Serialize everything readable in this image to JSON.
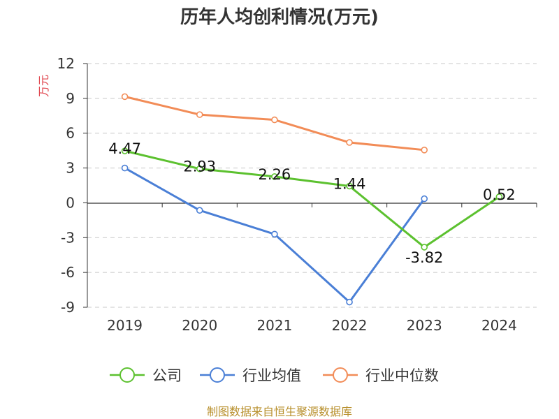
{
  "chart_data": {
    "type": "line",
    "title": "历年人均创利情况(万元)",
    "ylabel": "万元",
    "xlabel": "",
    "categories": [
      "2019",
      "2020",
      "2021",
      "2022",
      "2023",
      "2024"
    ],
    "ylim": [
      -9,
      12
    ],
    "yticks": [
      12,
      9,
      6,
      3,
      0,
      -3,
      -6,
      -9
    ],
    "grid": true,
    "legend_position": "bottom",
    "series": [
      {
        "name": "公司",
        "color": "#5cc12f",
        "values": [
          4.47,
          2.93,
          2.26,
          1.44,
          -3.82,
          0.52
        ],
        "labels": [
          "4.47",
          "2.93",
          "2.26",
          "1.44",
          "-3.82",
          "0.52"
        ]
      },
      {
        "name": "行业均值",
        "color": "#4a7fd6",
        "values": [
          3.0,
          -0.65,
          -2.7,
          -8.55,
          0.35,
          null
        ]
      },
      {
        "name": "行业中位数",
        "color": "#f28c57",
        "values": [
          9.15,
          7.6,
          7.15,
          5.2,
          4.55,
          null
        ]
      }
    ],
    "source": "制图数据来自恒生聚源数据库"
  }
}
